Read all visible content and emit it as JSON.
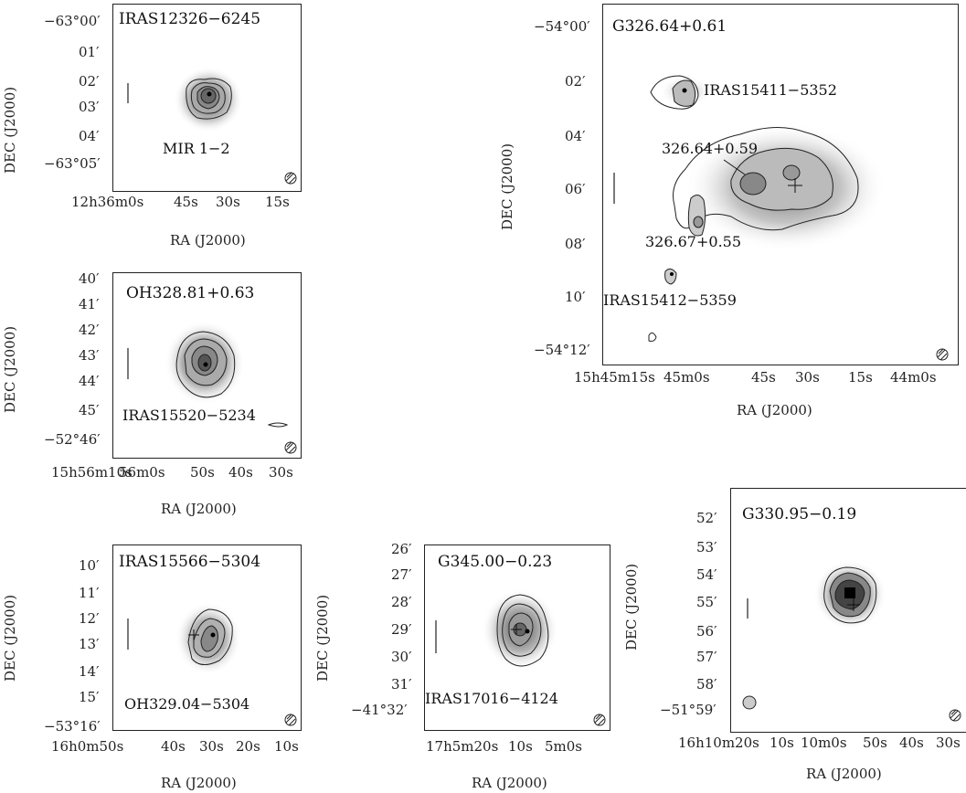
{
  "axis_labels": {
    "ra": "RA (J2000)",
    "dec": "DEC (J2000)"
  },
  "panels": {
    "iras12326": {
      "title": "IRAS12326−6245",
      "source_label": "MIR 1−2",
      "dec_ticks": [
        "−63°00′",
        "01′",
        "02′",
        "03′",
        "04′",
        "−63°05′"
      ],
      "ra_ticks": [
        "12h36m0s",
        "45s",
        "30s",
        "15s"
      ]
    },
    "g326": {
      "title": "G326.64+0.61",
      "labels": [
        "IRAS15411−5352",
        "326.64+0.59",
        "326.67+0.55",
        "IRAS15412−5359"
      ],
      "dec_ticks": [
        "−54°00′",
        "02′",
        "04′",
        "06′",
        "08′",
        "10′",
        "−54°12′"
      ],
      "ra_ticks": [
        "15h45m15s",
        "45m0s",
        "45s",
        "30s",
        "15s",
        "44m0s"
      ]
    },
    "oh328": {
      "title": "OH328.81+0.63",
      "source_label": "IRAS15520−5234",
      "dec_ticks": [
        "40′",
        "41′",
        "42′",
        "43′",
        "44′",
        "45′",
        "−52°46′"
      ],
      "ra_ticks": [
        "15h56m10s",
        "56m0s",
        "50s",
        "40s",
        "30s"
      ]
    },
    "iras15566": {
      "title": "IRAS15566−5304",
      "source_label": "OH329.04−5304",
      "dec_ticks": [
        "10′",
        "11′",
        "12′",
        "13′",
        "14′",
        "15′",
        "−53°16′"
      ],
      "ra_ticks": [
        "16h0m50s",
        "40s",
        "30s",
        "20s",
        "10s"
      ]
    },
    "g345": {
      "title": "G345.00−0.23",
      "source_label": "IRAS17016−4124",
      "dec_ticks": [
        "26′",
        "27′",
        "28′",
        "29′",
        "30′",
        "31′",
        "−41°32′"
      ],
      "ra_ticks": [
        "17h5m20s",
        "10s",
        "5m0s"
      ]
    },
    "g330": {
      "title": "G330.95−0.19",
      "dec_ticks": [
        "52′",
        "53′",
        "54′",
        "55′",
        "56′",
        "57′",
        "58′",
        "−51°59′"
      ],
      "ra_ticks": [
        "16h10m20s",
        "10s",
        "10m0s",
        "50s",
        "40s",
        "30s"
      ]
    }
  }
}
